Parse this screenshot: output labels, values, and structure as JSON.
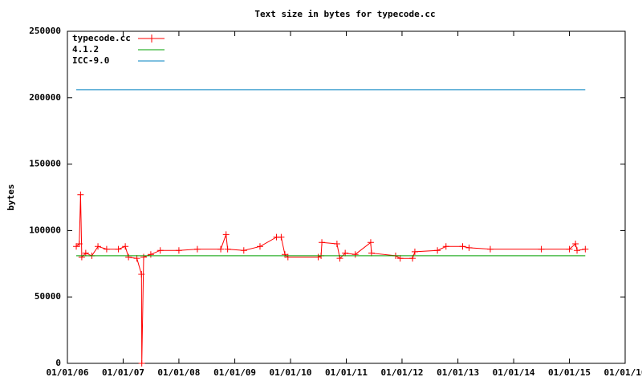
{
  "chart_data": {
    "type": "line",
    "title": "Text size in bytes for typecode.cc",
    "y_label": "bytes",
    "ylim": [
      0,
      250000
    ],
    "yticks": [
      0,
      50000,
      100000,
      150000,
      200000,
      250000
    ],
    "xlim": [
      "01/01/06",
      "01/01/16"
    ],
    "xticks": [
      "01/01/06",
      "01/01/07",
      "01/01/08",
      "01/01/09",
      "01/01/10",
      "01/01/11",
      "01/01/12",
      "01/01/13",
      "01/01/14",
      "01/01/15",
      "01/01/16"
    ],
    "legend": "top-left",
    "series": [
      {
        "name": "typecode.cc",
        "color": "#ff0000",
        "marker": "+",
        "x": [
          "02/28/06",
          "03/20/06",
          "03/28/06",
          "04/05/06",
          "05/01/06",
          "06/10/06",
          "07/20/06",
          "09/15/06",
          "12/01/06",
          "01/15/07",
          "02/05/07",
          "04/01/07",
          "05/01/07",
          "05/03/07",
          "05/15/07",
          "07/01/07",
          "09/01/07",
          "01/01/08",
          "05/01/08",
          "10/01/08",
          "11/05/08",
          "11/15/08",
          "03/01/09",
          "06/15/09",
          "10/01/09",
          "11/01/09",
          "11/25/09",
          "12/15/09",
          "07/01/10",
          "07/20/10",
          "07/25/10",
          "11/01/10",
          "11/20/10",
          "12/25/10",
          "03/01/11",
          "06/10/11",
          "06/15/11",
          "11/20/11",
          "12/20/11",
          "03/10/12",
          "03/25/12",
          "08/20/12",
          "10/15/12",
          "02/01/13",
          "03/15/13",
          "08/01/13",
          "07/01/14",
          "01/01/15",
          "02/10/15",
          "02/20/15",
          "04/15/15"
        ],
        "values": [
          88000,
          90000,
          127000,
          80000,
          83000,
          81000,
          88000,
          86000,
          86000,
          88000,
          80000,
          79000,
          67000,
          0,
          80000,
          82000,
          85000,
          85000,
          86000,
          86000,
          97000,
          86000,
          85000,
          88000,
          95000,
          95000,
          82000,
          80000,
          80000,
          81000,
          91000,
          90000,
          79000,
          83000,
          82000,
          91000,
          83000,
          81000,
          79000,
          79000,
          84000,
          85000,
          88000,
          88000,
          87000,
          86000,
          86000,
          86000,
          90000,
          85000,
          86000
        ]
      },
      {
        "name": "4.1.2",
        "color": "#00a000",
        "x": [
          "02/28/06",
          "04/15/15"
        ],
        "values": [
          81000,
          81000
        ]
      },
      {
        "name": "ICC-9.0",
        "color": "#0080c0",
        "x": [
          "02/28/06",
          "04/15/15"
        ],
        "values": [
          206000,
          206000
        ]
      }
    ]
  }
}
